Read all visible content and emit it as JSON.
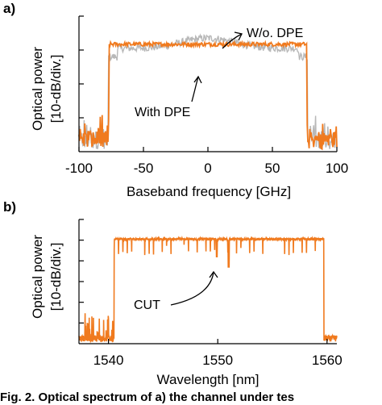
{
  "colors": {
    "with_dpe": "#F07A1E",
    "without_dpe": "#B8B8B8",
    "axis": "#000000"
  },
  "caption": "Fig. 2. Optical spectrum of a) the channel under tes",
  "chart_data": [
    {
      "panel": "a)",
      "type": "line",
      "xlabel": "Baseband frequency [GHz]",
      "ylabel_lines": [
        "Optical power",
        "[10-dB/div.]"
      ],
      "xlim": [
        -100,
        100
      ],
      "xticks": [
        -100,
        -50,
        0,
        50,
        100
      ],
      "xtick_labels": [
        "-100",
        "-50",
        "0",
        "50",
        "100"
      ],
      "y_divisions": 4,
      "y_unit": "div (10 dB/div)",
      "series": [
        {
          "name": "W/o. DPE",
          "color": "#B8B8B8",
          "description_points": [
            [
              -100,
              0.3
            ],
            [
              -78,
              0.3
            ],
            [
              -76,
              3.1
            ],
            [
              -50,
              3.15
            ],
            [
              -25,
              3.25
            ],
            [
              0,
              3.45
            ],
            [
              25,
              3.25
            ],
            [
              50,
              3.15
            ],
            [
              76,
              3.1
            ],
            [
              78,
              0.3
            ],
            [
              100,
              0.3
            ]
          ]
        },
        {
          "name": "With DPE",
          "color": "#F07A1E",
          "description_points": [
            [
              -100,
              0.3
            ],
            [
              -77,
              0.3
            ],
            [
              -76,
              3.15
            ],
            [
              0,
              3.2
            ],
            [
              76,
              3.15
            ],
            [
              77,
              0.3
            ],
            [
              100,
              0.3
            ]
          ]
        }
      ],
      "annotations": [
        {
          "text": "W/o. DPE"
        },
        {
          "text": "With DPE"
        }
      ]
    },
    {
      "panel": "b)",
      "type": "line",
      "xlabel": "Wavelength [nm]",
      "ylabel_lines": [
        "Optical power",
        "[10-dB/div.]"
      ],
      "xlim": [
        1537.3,
        1560.9
      ],
      "xticks": [
        1540,
        1550,
        1560
      ],
      "xtick_labels": [
        "1540",
        "1550",
        "1560"
      ],
      "y_divisions": 6,
      "y_unit": "div (10 dB/div)",
      "series": [
        {
          "name": "With DPE",
          "color": "#F07A1E",
          "description_points": [
            [
              1537.3,
              0.3
            ],
            [
              1540.3,
              0.3
            ],
            [
              1540.6,
              5.05
            ],
            [
              1551,
              5.05
            ],
            [
              1559.6,
              5.05
            ],
            [
              1559.9,
              0.3
            ],
            [
              1560.9,
              0.3
            ]
          ]
        }
      ],
      "annotations": [
        {
          "text": "CUT",
          "x": 1551
        }
      ]
    }
  ]
}
